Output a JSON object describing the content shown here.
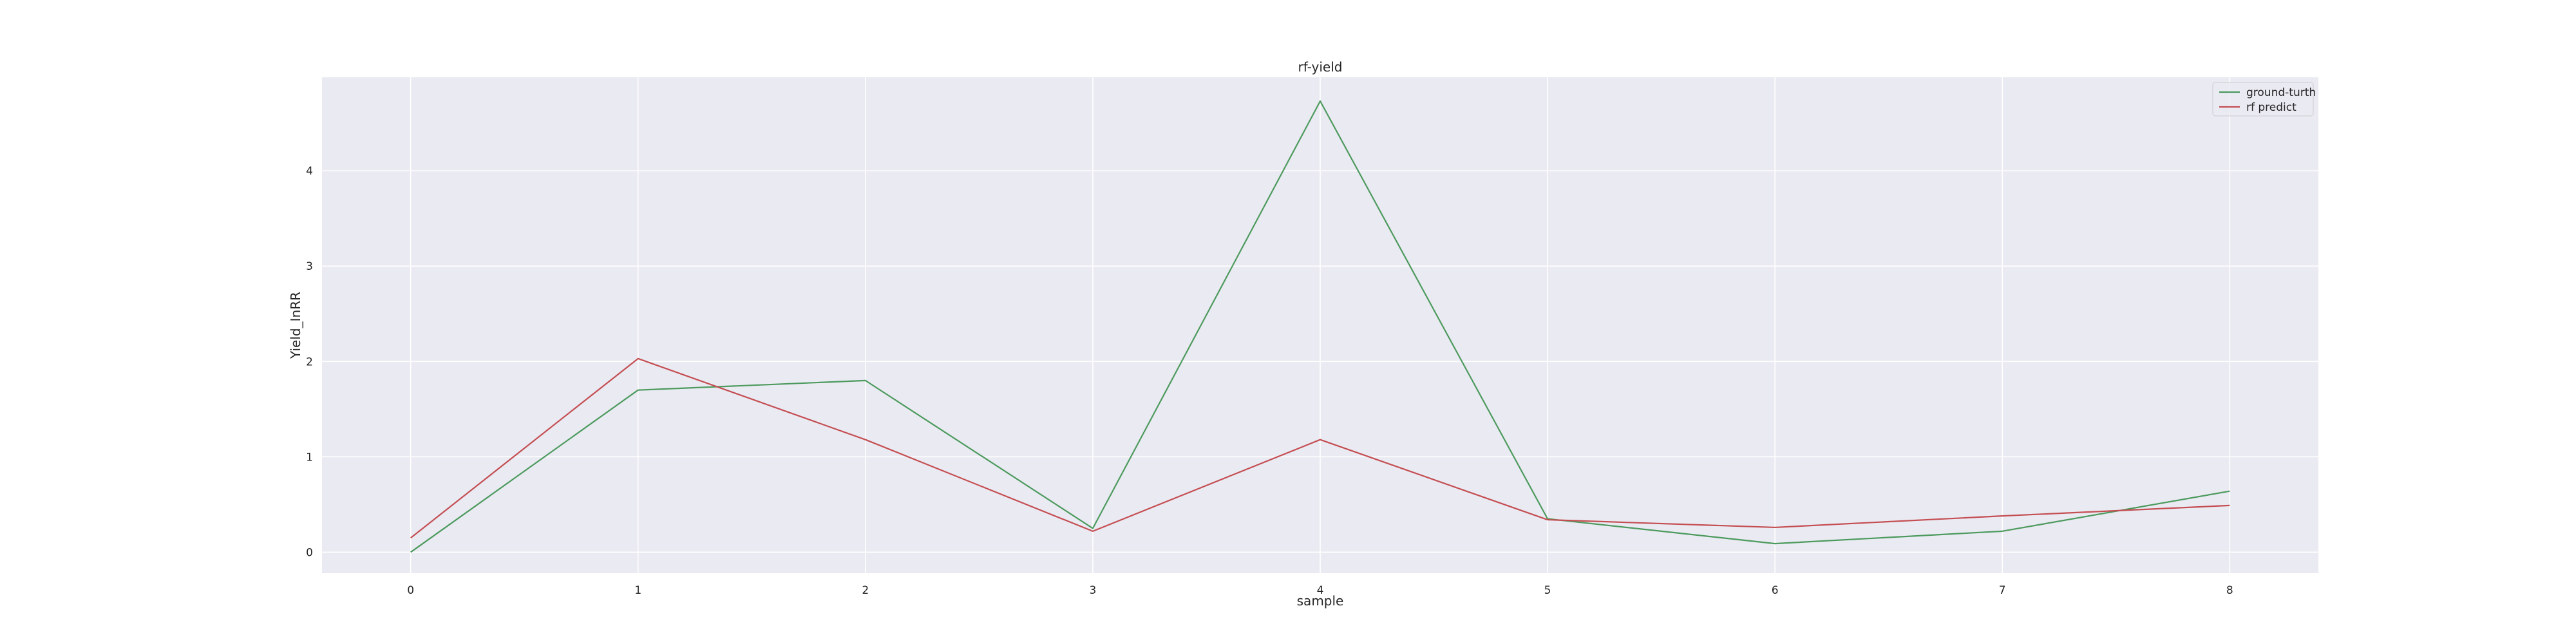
{
  "chart_data": {
    "type": "line",
    "title": "rf-yield",
    "xlabel": "sample",
    "ylabel": "Yield_InRR",
    "x": [
      0,
      1,
      2,
      3,
      4,
      5,
      6,
      7,
      8
    ],
    "xlim": [
      -0.39,
      8.39
    ],
    "ylim": [
      -0.22,
      4.98
    ],
    "xticks": [
      0,
      1,
      2,
      3,
      4,
      5,
      6,
      7,
      8
    ],
    "yticks": [
      0,
      1,
      2,
      3,
      4
    ],
    "grid": true,
    "legend_position": "top-right",
    "background": "#eaeaf2",
    "series": [
      {
        "name": "ground-turth",
        "color": "#4c9a5d",
        "values": [
          0.0,
          1.7,
          1.8,
          0.25,
          4.73,
          0.35,
          0.09,
          0.22,
          0.64
        ]
      },
      {
        "name": "rf predict",
        "color": "#c44e52",
        "values": [
          0.15,
          2.03,
          1.18,
          0.22,
          1.18,
          0.34,
          0.26,
          0.38,
          0.49
        ]
      }
    ]
  }
}
